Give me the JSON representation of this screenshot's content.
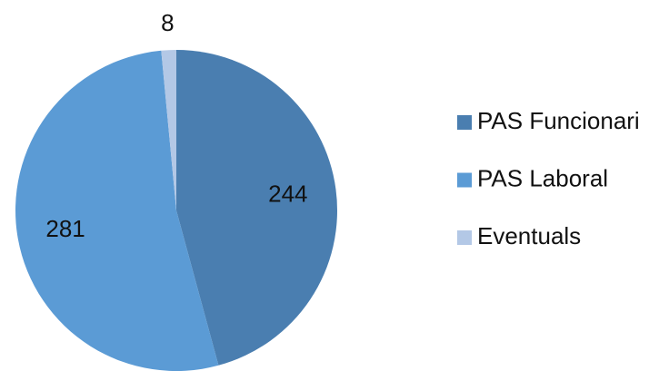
{
  "chart_data": {
    "type": "pie",
    "categories": [
      "PAS Funcionari",
      "PAS Laboral",
      "Eventuals"
    ],
    "values": [
      244,
      281,
      8
    ],
    "colors": [
      "#4a7eb0",
      "#5b9bd5",
      "#b3c8e6"
    ],
    "legend": "right"
  }
}
